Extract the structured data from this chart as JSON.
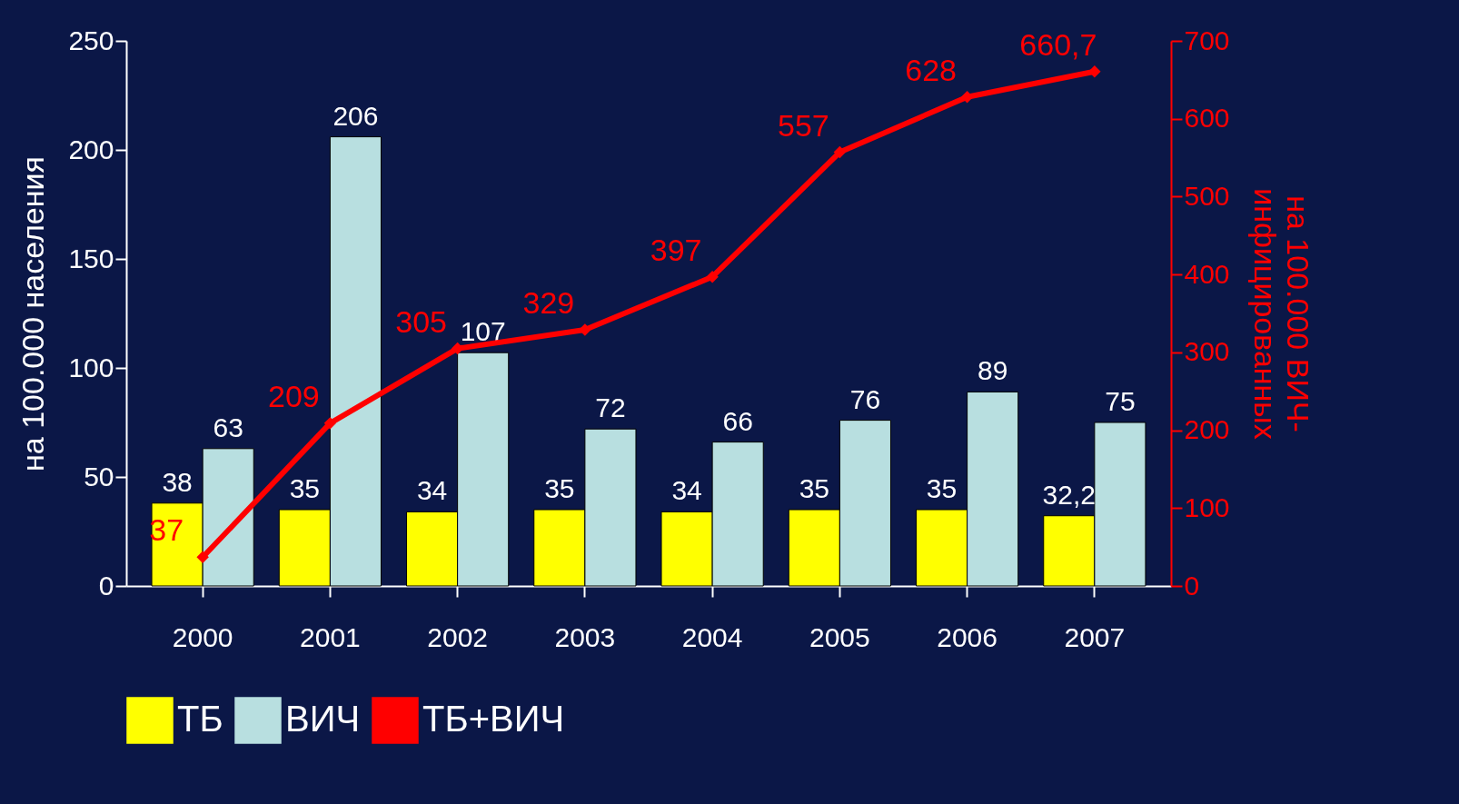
{
  "chart_data": {
    "type": "bar",
    "categories": [
      "2000",
      "2001",
      "2002",
      "2003",
      "2004",
      "2005",
      "2006",
      "2007"
    ],
    "ylabel": "на 100.000 населения",
    "y2label": "на 100.000 ВИЧ-инфицированных",
    "ylim": [
      0,
      250
    ],
    "yticks": [
      0,
      50,
      100,
      150,
      200,
      250
    ],
    "y2lim": [
      0,
      700
    ],
    "y2ticks": [
      0,
      100,
      200,
      300,
      400,
      500,
      600,
      700
    ],
    "grid": false,
    "legend": "bottom",
    "series": [
      {
        "name": "ТБ",
        "color": "#ffff00",
        "values": [
          38,
          35,
          34,
          35,
          34,
          35,
          35,
          32.2
        ],
        "value_labels": [
          "38",
          "35",
          "34",
          "35",
          "34",
          "35",
          "35",
          "32,2"
        ]
      },
      {
        "name": "ВИЧ",
        "color": "#b8dfe0",
        "values": [
          63,
          206,
          107,
          72,
          66,
          76,
          89,
          75
        ],
        "value_labels": [
          "63",
          "206",
          "107",
          "72",
          "66",
          "76",
          "89",
          "75"
        ]
      },
      {
        "name": "ТБ+ВИЧ",
        "type": "line",
        "axis": "y2",
        "color": "#ff0000",
        "marker": "diamond",
        "values": [
          37,
          209,
          305,
          329,
          397,
          557,
          628,
          660.7
        ],
        "value_labels": [
          "37",
          "209",
          "305",
          "329",
          "397",
          "557",
          "628",
          "660,7"
        ]
      }
    ]
  }
}
